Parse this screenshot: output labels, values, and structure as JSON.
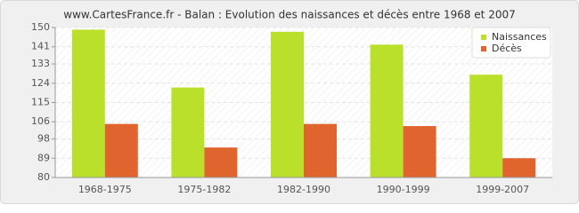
{
  "chart_data": {
    "type": "bar",
    "title": "www.CartesFrance.fr - Balan : Evolution des naissances et décès entre 1968 et 2007",
    "categories": [
      "1968-1975",
      "1975-1982",
      "1982-1990",
      "1990-1999",
      "1999-2007"
    ],
    "series": [
      {
        "name": "Naissances",
        "color": "#bbe02c",
        "values": [
          149,
          122,
          148,
          142,
          128
        ]
      },
      {
        "name": "Décès",
        "color": "#e0642e",
        "values": [
          105,
          94,
          105,
          104,
          89
        ]
      }
    ],
    "ylim": [
      80,
      150
    ],
    "yticks": [
      80,
      89,
      98,
      106,
      115,
      124,
      133,
      141,
      150
    ],
    "grid": true,
    "legend": "upper-right"
  }
}
